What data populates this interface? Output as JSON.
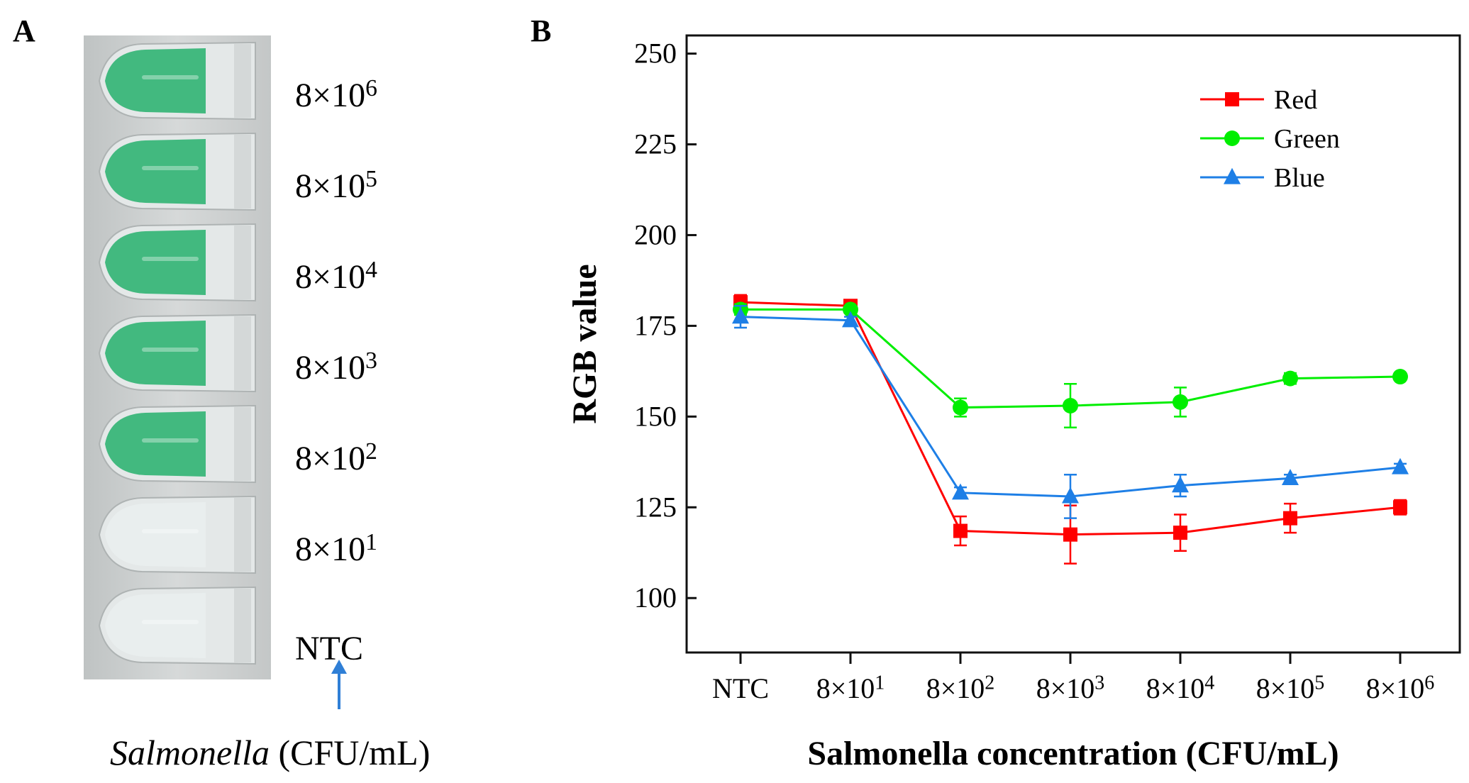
{
  "panel_a": {
    "letter": "A",
    "tube_labels": [
      {
        "mantissa": "8×10",
        "exp": "6",
        "color": "green"
      },
      {
        "mantissa": "8×10",
        "exp": "5",
        "color": "green"
      },
      {
        "mantissa": "8×10",
        "exp": "4",
        "color": "green"
      },
      {
        "mantissa": "8×10",
        "exp": "3",
        "color": "green"
      },
      {
        "mantissa": "8×10",
        "exp": "2",
        "color": "green"
      },
      {
        "mantissa": "8×10",
        "exp": "1",
        "color": "clear"
      },
      {
        "mantissa": "NTC",
        "exp": "",
        "color": "clear"
      }
    ],
    "caption_italic": "Salmonella",
    "caption_rest": " (CFU/mL)",
    "arrow_color": "#2f7fd6",
    "green_liquid": "#39b679",
    "clear_liquid": "#e9eeee"
  },
  "chart_data": {
    "type": "line",
    "panel_letter": "B",
    "categories": [
      {
        "mantissa": "NTC",
        "exp": ""
      },
      {
        "mantissa": "8×10",
        "exp": "1"
      },
      {
        "mantissa": "8×10",
        "exp": "2"
      },
      {
        "mantissa": "8×10",
        "exp": "3"
      },
      {
        "mantissa": "8×10",
        "exp": "4"
      },
      {
        "mantissa": "8×10",
        "exp": "5"
      },
      {
        "mantissa": "8×10",
        "exp": "6"
      }
    ],
    "xlabel": "Salmonella concentration (CFU/mL)",
    "ylabel": "RGB value",
    "ylim": [
      85,
      255
    ],
    "yticks": [
      100,
      125,
      150,
      175,
      200,
      225,
      250
    ],
    "legend_position": "top-right",
    "series": [
      {
        "name": "Red",
        "color": "#ff0000",
        "marker": "square",
        "values": [
          181.5,
          180.5,
          118.5,
          117.5,
          118,
          122,
          125
        ],
        "errors": [
          2,
          1,
          4,
          8,
          5,
          4,
          2
        ]
      },
      {
        "name": "Green",
        "color": "#00ee00",
        "marker": "circle",
        "values": [
          179.5,
          179.5,
          152.5,
          153,
          154,
          160.5,
          161
        ],
        "errors": [
          1.5,
          1,
          2.5,
          6,
          4,
          1.5,
          1
        ]
      },
      {
        "name": "Blue",
        "color": "#1e7fe6",
        "marker": "triangle",
        "values": [
          177.5,
          176.5,
          129,
          128,
          131,
          133,
          136
        ],
        "errors": [
          3,
          1,
          1.5,
          6,
          3,
          1,
          1
        ]
      }
    ]
  }
}
